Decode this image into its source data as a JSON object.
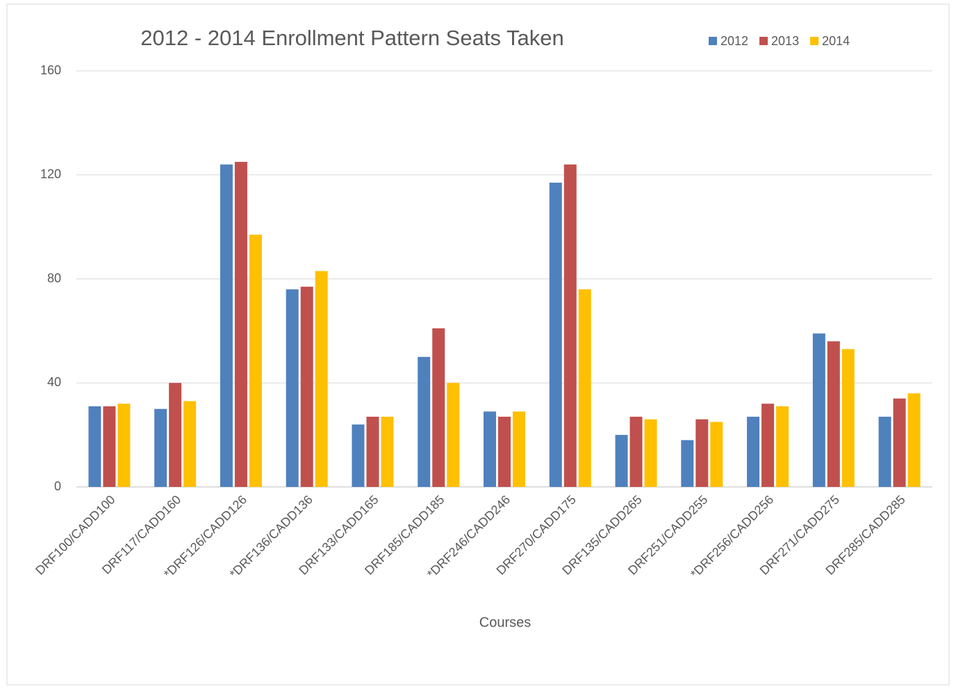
{
  "chart_data": {
    "type": "bar",
    "title": "2012 - 2014 Enrollment Pattern Seats Taken",
    "x_label": "Courses",
    "categories": [
      "DRF100/CADD100",
      "DRF117/CADD160",
      "*DRF126/CADD126",
      "*DRF136/CADD136",
      "DRF133/CADD165",
      "DRF185/CADD185",
      "*DRF246/CADD246",
      "DRF270/CADD175",
      "DRF135/CADD265",
      "DRF251/CADD255",
      "*DRF256/CADD256",
      "DRF271/CADD275",
      "DRF285/CADD285"
    ],
    "series": [
      {
        "name": "2012",
        "color": "#4f81bd",
        "values": [
          31,
          30,
          124,
          76,
          24,
          50,
          29,
          117,
          20,
          18,
          27,
          59,
          27
        ]
      },
      {
        "name": "2013",
        "color": "#c0504d",
        "values": [
          31,
          40,
          125,
          77,
          27,
          61,
          27,
          124,
          27,
          26,
          32,
          56,
          34
        ]
      },
      {
        "name": "2014",
        "color": "#ffc000",
        "values": [
          32,
          33,
          97,
          83,
          27,
          40,
          29,
          76,
          26,
          25,
          31,
          53,
          36
        ]
      }
    ],
    "ylim": [
      0,
      160
    ],
    "yticks": [
      0,
      40,
      80,
      120,
      160
    ],
    "grid": true,
    "legend": "top-right"
  }
}
